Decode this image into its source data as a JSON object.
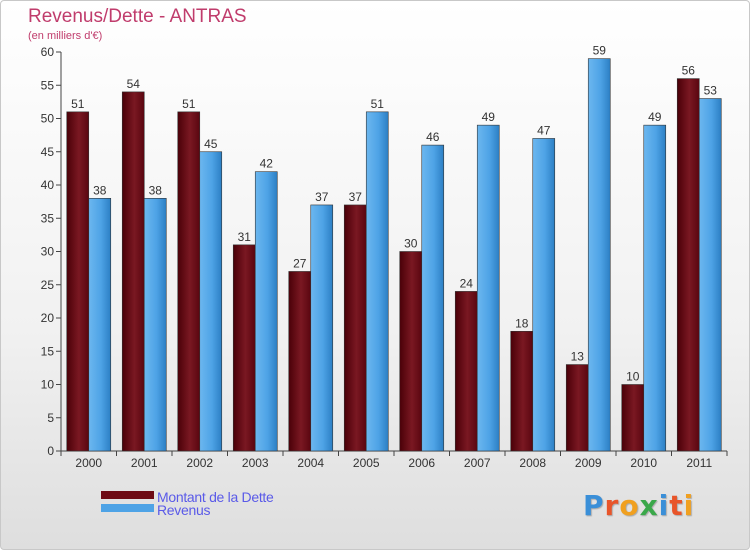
{
  "title": "Revenus/Dette - ANTRAS",
  "subtitle": "(en milliers d'€)",
  "logo": "Proxiti",
  "colors": {
    "dette": "#6e0a14",
    "revenus": "#4ea3e6",
    "title": "#c03c6c",
    "legend_text": "#5a5ae8"
  },
  "legend": [
    {
      "label": "Montant de la Dette",
      "color": "#6e0a14"
    },
    {
      "label": "Revenus",
      "color": "#4ea3e6"
    }
  ],
  "chart_data": {
    "type": "bar",
    "categories": [
      "2000",
      "2001",
      "2002",
      "2003",
      "2004",
      "2005",
      "2006",
      "2007",
      "2008",
      "2009",
      "2010",
      "2011"
    ],
    "series": [
      {
        "name": "Montant de la Dette",
        "values": [
          51,
          54,
          51,
          31,
          27,
          37,
          30,
          24,
          18,
          13,
          10,
          56
        ]
      },
      {
        "name": "Revenus",
        "values": [
          38,
          38,
          45,
          42,
          37,
          51,
          46,
          49,
          47,
          59,
          49,
          53
        ]
      }
    ],
    "ylim": [
      0,
      60
    ],
    "yticks": [
      0,
      5,
      10,
      15,
      20,
      25,
      30,
      35,
      40,
      45,
      50,
      55,
      60
    ],
    "grid": false,
    "legend_position": "bottom-left"
  }
}
